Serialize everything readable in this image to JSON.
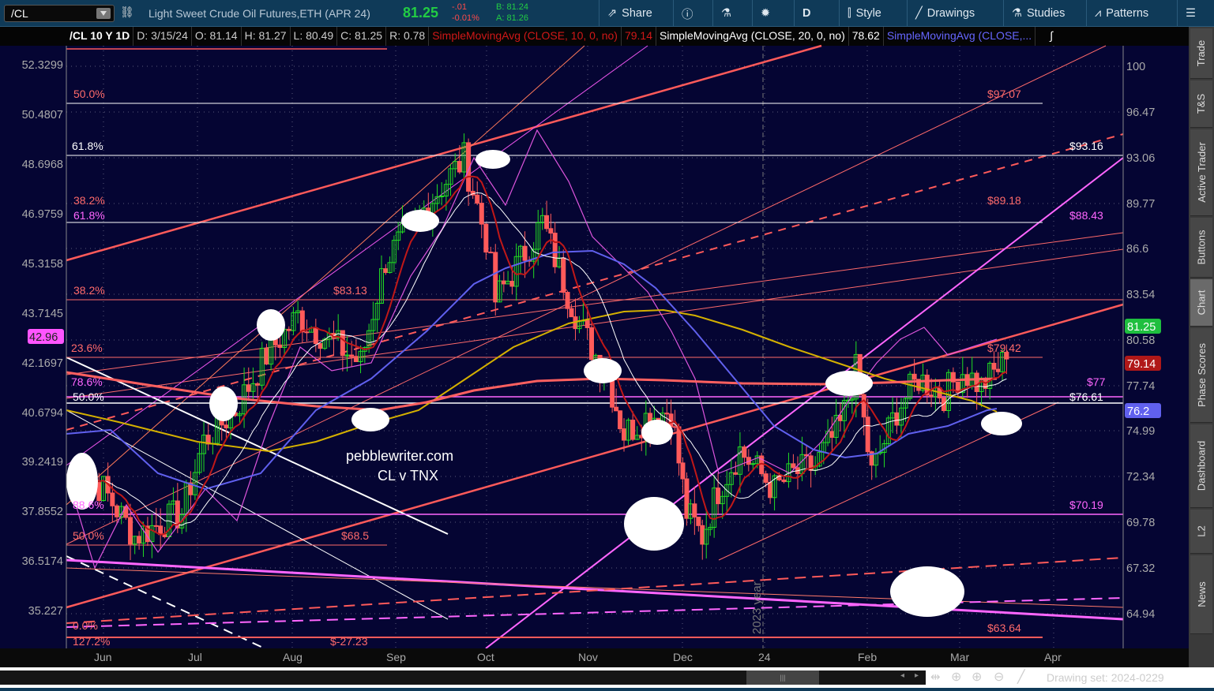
{
  "toolbar": {
    "symbol": "/CL",
    "description": "Light Sweet Crude Oil Futures,ETH (APR 24)",
    "last": "81.25",
    "change": "-.01",
    "change_pct": "-0.01%",
    "bid": "B: 81.24",
    "ask": "A: 81.26",
    "share": "Share",
    "timeframe": "D",
    "style": "Style",
    "drawings": "Drawings",
    "studies": "Studies",
    "patterns": "Patterns"
  },
  "header": {
    "title": "/CL 10 Y 1D",
    "date": "D: 3/15/24",
    "open": "O: 81.14",
    "high": "H: 81.27",
    "low": "L: 80.49",
    "close": "C: 81.25",
    "range": "R: 0.78",
    "sma1": "SimpleMovingAvg (CLOSE, 10, 0, no)",
    "sma1_val": "79.14",
    "sma2": "SimpleMovingAvg (CLOSE, 20, 0, no)",
    "sma2_val": "78.62",
    "sma3": "SimpleMovingAvg (CLOSE,..."
  },
  "side_tabs": [
    "Trade",
    "T&S",
    "Active Trader",
    "Buttons",
    "Chart",
    "Phase Scores",
    "Dashboard",
    "L2",
    "News"
  ],
  "right_axis": [
    "100",
    "96.47",
    "93.06",
    "89.77",
    "86.6",
    "83.54",
    "80.58",
    "77.74",
    "74.99",
    "72.34",
    "69.78",
    "67.32",
    "64.94"
  ],
  "left_axis": [
    "52.3299",
    "50.4807",
    "48.6968",
    "46.9759",
    "45.3158",
    "43.7145",
    "42.1697",
    "40.6794",
    "39.2419",
    "37.8552",
    "36.5174",
    "35.227"
  ],
  "left_badge": "42.96",
  "price_badges": [
    {
      "v": "81.25",
      "color": "#1fbf3f"
    },
    {
      "v": "79.14",
      "color": "#b01818"
    },
    {
      "v": "76.2",
      "color": "#6060ee"
    }
  ],
  "months": [
    "Jun",
    "Jul",
    "Aug",
    "Sep",
    "Oct",
    "Nov",
    "Dec",
    "24",
    "Feb",
    "Mar",
    "Apr"
  ],
  "annotations": {
    "fib": [
      "50.0%",
      "61.8%",
      "38.2%",
      "61.8%",
      "38.2%",
      "23.6%",
      "78.6%",
      "50.0%",
      "88.6%",
      "50.0%",
      "0.0%",
      "127.2%"
    ],
    "prices": [
      "$97.07",
      "$93.16",
      "$89.18",
      "$88.43",
      "$83.13",
      "$79.42",
      "$77",
      "$76.61",
      "$70.19",
      "$68.5",
      "$63.64",
      "$-27.23"
    ],
    "watermark": "pebblewriter.com",
    "subtitle": "CL v TNX",
    "year_marker": "2023 year"
  },
  "closes": [
    [
      "2023-05-22",
      74.4
    ],
    [
      "2023-06-01",
      72.9
    ],
    [
      "2023-06-11",
      69.9
    ],
    [
      "2023-06-26",
      71.4
    ],
    [
      "2023-07-03",
      76.0
    ],
    [
      "2023-07-13",
      78.0
    ],
    [
      "2023-07-23",
      81.5
    ],
    [
      "2023-08-02",
      84.0
    ],
    [
      "2023-08-12",
      82.5
    ],
    [
      "2023-08-22",
      81.0
    ],
    [
      "2023-08-30",
      87.6
    ],
    [
      "2023-09-07",
      89.6
    ],
    [
      "2023-09-14",
      91.6
    ],
    [
      "2023-09-24",
      94.1
    ],
    [
      "2023-10-01",
      89.0
    ],
    [
      "2023-10-04",
      85.0
    ],
    [
      "2023-10-12",
      87.6
    ],
    [
      "2023-10-19",
      90.0
    ],
    [
      "2023-10-27",
      85.5
    ],
    [
      "2023-11-01",
      83.0
    ],
    [
      "2023-11-09",
      80.0
    ],
    [
      "2023-11-14",
      76.5
    ],
    [
      "2023-11-21",
      77.5
    ],
    [
      "2023-11-29",
      78.0
    ],
    [
      "2023-12-04",
      71.4
    ],
    [
      "2023-12-09",
      69.9
    ],
    [
      "2023-12-14",
      72.9
    ],
    [
      "2023-12-21",
      75.4
    ],
    [
      "2024-01-01",
      72.9
    ],
    [
      "2024-01-07",
      73.9
    ],
    [
      "2024-01-14",
      74.4
    ],
    [
      "2024-01-22",
      77.0
    ],
    [
      "2024-01-27",
      80.5
    ],
    [
      "2024-02-01",
      73.9
    ],
    [
      "2024-02-09",
      78.0
    ],
    [
      "2024-02-16",
      80.0
    ],
    [
      "2024-02-24",
      79.0
    ],
    [
      "2024-03-01",
      80.5
    ],
    [
      "2024-03-07",
      79.5
    ],
    [
      "2024-03-15",
      81.25
    ]
  ],
  "colors": {
    "bg": "#050533",
    "up": "#22dd22",
    "down": "#ff5a5a",
    "sma10": "#c01818",
    "sma20": "#ffffff",
    "sma50": "#6060ee",
    "sma100": "#d4b000",
    "sma200": "#ff6060",
    "tnx": "#dd55dd"
  },
  "footer": {
    "drawing_set": "Drawing set: 2024-0229"
  }
}
